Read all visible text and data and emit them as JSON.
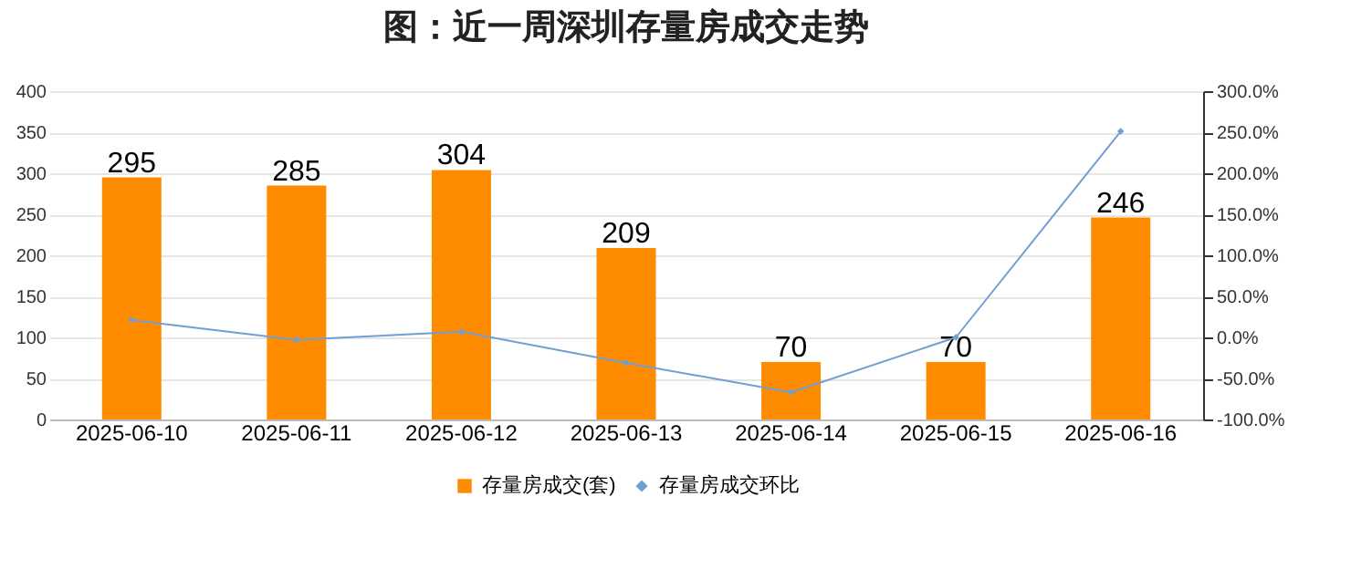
{
  "chart_data": {
    "type": "bar",
    "title": "图：近一周深圳存量房成交走势",
    "categories": [
      "2025-06-10",
      "2025-06-11",
      "2025-06-12",
      "2025-06-13",
      "2025-06-14",
      "2025-06-15",
      "2025-06-16"
    ],
    "series": [
      {
        "name": "存量房成交(套)",
        "color": "#ff8c00",
        "values": [
          295,
          285,
          304,
          209,
          70,
          70,
          246
        ],
        "value_labels": [
          "295",
          "285",
          "304",
          "209",
          "70",
          "70",
          "246"
        ]
      },
      {
        "name": "存量房成交环比",
        "type": "line",
        "axis": "y2",
        "color": "#6f9fd3",
        "values": [
          21,
          -3,
          7,
          -31,
          -67,
          0,
          251
        ]
      }
    ],
    "ylim": [
      0,
      400
    ],
    "yticks": [
      0,
      50,
      100,
      150,
      200,
      250,
      300,
      350,
      400
    ],
    "y2lim": [
      -100,
      300
    ],
    "y2ticks": [
      {
        "value": -100,
        "label": "-100.0%"
      },
      {
        "value": -50,
        "label": "-50.0%"
      },
      {
        "value": 0,
        "label": "0.0%"
      },
      {
        "value": 50,
        "label": "50.0%"
      },
      {
        "value": 100,
        "label": "100.0%"
      },
      {
        "value": 150,
        "label": "150.0%"
      },
      {
        "value": 200,
        "label": "200.0%"
      },
      {
        "value": 250,
        "label": "250.0%"
      },
      {
        "value": 300,
        "label": "300.0%"
      }
    ],
    "grid": "y",
    "legend": "bottom",
    "marker": "diamond"
  }
}
